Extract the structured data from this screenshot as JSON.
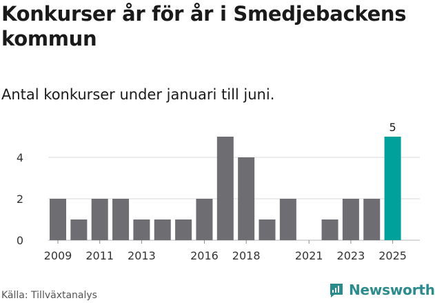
{
  "title": "Konkurser år för år i Smedjebackens kommun",
  "subtitle": "Antal konkurser under januari till juni.",
  "source": "Källa: Tillväxtanalys",
  "brand": {
    "name": "Newsworthy",
    "color": "#2a8c8c"
  },
  "chart_data": {
    "type": "bar",
    "categories": [
      "2009",
      "2010",
      "2011",
      "2012",
      "2013",
      "2014",
      "2015",
      "2016",
      "2017",
      "2018",
      "2019",
      "2020",
      "2021",
      "2022",
      "2023",
      "2024",
      "2025"
    ],
    "values": [
      2,
      1,
      2,
      2,
      1,
      1,
      1,
      2,
      5,
      4,
      1,
      2,
      0,
      1,
      2,
      2,
      5
    ],
    "x_tick_labels": [
      "2009",
      "2011",
      "2013",
      "2016",
      "2018",
      "2021",
      "2023",
      "2025"
    ],
    "y_ticks": [
      0,
      2,
      4
    ],
    "ylim": [
      0,
      5
    ],
    "highlight": {
      "category": "2025",
      "label": "5"
    },
    "grid": true,
    "bar_color": "#6d6d72",
    "highlight_color": "#00a19a",
    "grid_color": "#d9d9d9"
  }
}
